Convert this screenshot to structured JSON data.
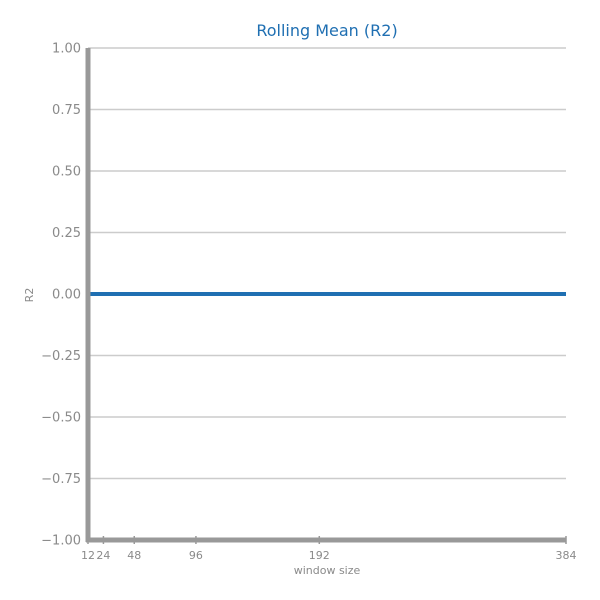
{
  "chart_data": {
    "type": "line",
    "title": "Rolling Mean (R2)",
    "xlabel": "window size",
    "ylabel": "R2",
    "x": [
      12,
      24,
      48,
      96,
      192,
      384
    ],
    "xticks": [
      "12",
      "24",
      "48",
      "96",
      "192",
      "384"
    ],
    "xlim": [
      12,
      384
    ],
    "ylim": [
      -1.0,
      1.0
    ],
    "yticks": [
      "−1.00",
      "−0.75",
      "−0.50",
      "−0.25",
      "0.00",
      "0.25",
      "0.50",
      "0.75",
      "1.00"
    ],
    "ytick_values": [
      -1.0,
      -0.75,
      -0.5,
      -0.25,
      0.0,
      0.25,
      0.5,
      0.75,
      1.0
    ],
    "series": [
      {
        "values": [
          0,
          0,
          0,
          0,
          0,
          0
        ],
        "color": "#1f6fb2"
      }
    ],
    "grid": true,
    "colors": {
      "title": "#1f6fb2",
      "axis": "#999999",
      "grid": "#cccccc",
      "text": "#8a8a8a"
    }
  }
}
